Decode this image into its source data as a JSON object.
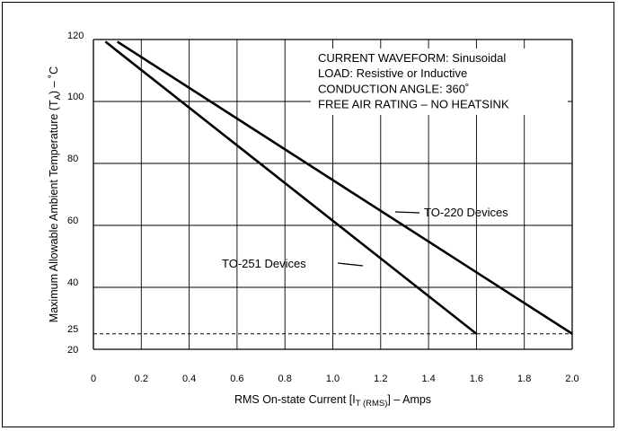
{
  "chart_data": {
    "type": "line",
    "xlabel": "RMS On-state Current [I",
    "xlabel_sub": "T (RMS)",
    "xlabel_suffix": "] – Amps",
    "ylabel": "Maximum Allowable Ambient Temperature (T",
    "ylabel_sub": "A",
    "ylabel_suffix": ") – ˚C",
    "xlim": [
      0,
      2.0
    ],
    "ylim": [
      20,
      120
    ],
    "x_ticks": [
      0,
      0.2,
      0.4,
      0.6,
      0.8,
      1.0,
      1.2,
      1.4,
      1.6,
      1.8,
      2.0
    ],
    "x_tick_labels": [
      "0",
      "0.2",
      "0.4",
      "0.6",
      "0.8",
      "1.0",
      "1.2",
      "1.4",
      "1.6",
      "1.8",
      "2.0"
    ],
    "y_ticks": [
      20,
      25,
      40,
      60,
      80,
      100,
      120
    ],
    "y_tick_labels": [
      "20",
      "25",
      "40",
      "60",
      "80",
      "100",
      "120"
    ],
    "grid": true,
    "reference_line": {
      "y": 25,
      "style": "dashed"
    },
    "series": [
      {
        "name": "TO-220 Devices",
        "x": [
          0.1,
          2.0
        ],
        "y": [
          119.3,
          25
        ],
        "color": "#000000"
      },
      {
        "name": "TO-251 Devices",
        "x": [
          0.05,
          1.6
        ],
        "y": [
          119.3,
          25
        ],
        "color": "#000000"
      }
    ],
    "annotations": [
      "CURRENT WAVEFORM: Sinusoidal",
      "LOAD: Resistive or Inductive",
      "CONDUCTION ANGLE: 360˚",
      "FREE AIR RATING – NO HEATSINK"
    ]
  }
}
